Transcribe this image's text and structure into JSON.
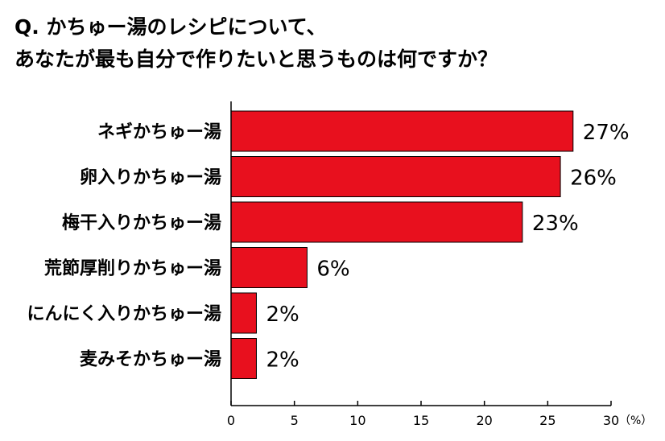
{
  "title": {
    "line1": "Q. かちゅー湯のレシピについて、",
    "line2": "あなたが最も自分で作りたいと思うものは何ですか？"
  },
  "chart_data": {
    "type": "bar",
    "orientation": "horizontal",
    "categories": [
      "ネギかちゅー湯",
      "卵入りかちゅー湯",
      "梅干入りかちゅー湯",
      "荒節厚削りかちゅー湯",
      "にんにく入りかちゅー湯",
      "麦みそかちゅー湯"
    ],
    "values": [
      27,
      26,
      23,
      6,
      2,
      2
    ],
    "value_labels": [
      "27%",
      "26%",
      "23%",
      "6%",
      "2%",
      "2%"
    ],
    "xlim": [
      0,
      30
    ],
    "xticks": [
      "0",
      "5",
      "10",
      "15",
      "20",
      "25",
      "30"
    ],
    "x_unit": "（%）",
    "bar_color": "#e8101e",
    "grid": false
  }
}
